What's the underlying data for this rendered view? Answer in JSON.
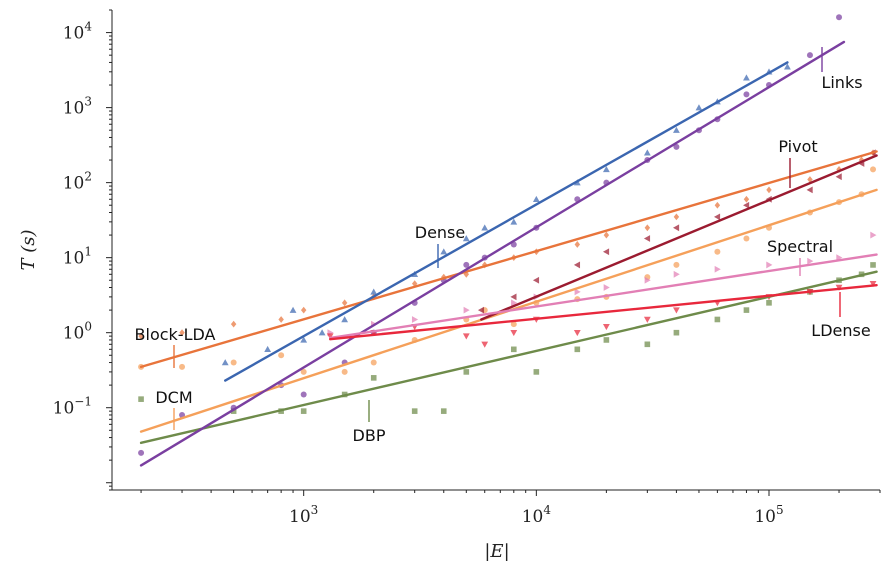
{
  "chart_data": {
    "type": "scatter",
    "title": "",
    "xlabel": "|E|",
    "ylabel": "T (s)",
    "xscale": "log",
    "yscale": "log",
    "xlim": [
      150,
      300000
    ],
    "ylim": [
      0.008,
      20000
    ],
    "x_ticks": [
      {
        "base": "10",
        "exp": "3",
        "value": 1000
      },
      {
        "base": "10",
        "exp": "4",
        "value": 10000
      },
      {
        "base": "10",
        "exp": "5",
        "value": 100000
      }
    ],
    "y_ticks": [
      {
        "base": "10",
        "exp": "−1",
        "value": 0.1
      },
      {
        "base": "10",
        "exp": "0",
        "value": 1
      },
      {
        "base": "10",
        "exp": "1",
        "value": 10
      },
      {
        "base": "10",
        "exp": "2",
        "value": 100
      },
      {
        "base": "10",
        "exp": "3",
        "value": 1000
      },
      {
        "base": "10",
        "exp": "4",
        "value": 10000
      }
    ],
    "grid": false,
    "series": [
      {
        "name": "Block-LDA",
        "color": "#e8743b",
        "marker": "diamond",
        "fit": [
          [
            200,
            0.35
          ],
          [
            290000,
            260
          ]
        ],
        "points": [
          [
            200,
            0.9
          ],
          [
            300,
            1.0
          ],
          [
            500,
            1.3
          ],
          [
            800,
            1.5
          ],
          [
            1000,
            2.0
          ],
          [
            1500,
            2.5
          ],
          [
            2000,
            3.0
          ],
          [
            3000,
            4.5
          ],
          [
            4000,
            5.5
          ],
          [
            5000,
            6.0
          ],
          [
            6000,
            8.0
          ],
          [
            8000,
            10
          ],
          [
            10000,
            12
          ],
          [
            15000,
            15
          ],
          [
            20000,
            20
          ],
          [
            30000,
            25
          ],
          [
            40000,
            35
          ],
          [
            60000,
            50
          ],
          [
            80000,
            60
          ],
          [
            100000,
            80
          ],
          [
            150000,
            110
          ],
          [
            200000,
            150
          ],
          [
            250000,
            200
          ],
          [
            280000,
            250
          ]
        ]
      },
      {
        "name": "DCM",
        "color": "#f5a05a",
        "marker": "circle",
        "fit": [
          [
            200,
            0.048
          ],
          [
            290000,
            80
          ]
        ],
        "points": [
          [
            200,
            0.35
          ],
          [
            300,
            0.35
          ],
          [
            500,
            0.4
          ],
          [
            800,
            0.5
          ],
          [
            1000,
            0.3
          ],
          [
            1500,
            0.3
          ],
          [
            2000,
            0.4
          ],
          [
            3000,
            0.8
          ],
          [
            5000,
            1.5
          ],
          [
            6000,
            2.0
          ],
          [
            8000,
            1.3
          ],
          [
            10000,
            2.5
          ],
          [
            15000,
            2.8
          ],
          [
            20000,
            3.0
          ],
          [
            30000,
            5.5
          ],
          [
            40000,
            8
          ],
          [
            60000,
            12
          ],
          [
            80000,
            18
          ],
          [
            100000,
            25
          ],
          [
            150000,
            40
          ],
          [
            200000,
            55
          ],
          [
            250000,
            70
          ],
          [
            280000,
            150
          ]
        ]
      },
      {
        "name": "DBP",
        "color": "#6e8b4a",
        "marker": "square",
        "fit": [
          [
            200,
            0.034
          ],
          [
            290000,
            6.5
          ]
        ],
        "points": [
          [
            200,
            0.13
          ],
          [
            500,
            0.09
          ],
          [
            800,
            0.09
          ],
          [
            1000,
            0.09
          ],
          [
            1500,
            0.15
          ],
          [
            2000,
            0.25
          ],
          [
            3000,
            0.09
          ],
          [
            4000,
            0.09
          ],
          [
            5000,
            0.3
          ],
          [
            8000,
            0.6
          ],
          [
            10000,
            0.3
          ],
          [
            15000,
            0.6
          ],
          [
            20000,
            0.8
          ],
          [
            30000,
            0.7
          ],
          [
            40000,
            1.0
          ],
          [
            60000,
            1.5
          ],
          [
            80000,
            2.0
          ],
          [
            100000,
            2.5
          ],
          [
            150000,
            3.5
          ],
          [
            200000,
            5
          ],
          [
            250000,
            6
          ],
          [
            280000,
            8
          ]
        ]
      },
      {
        "name": "Dense",
        "color": "#3b66b0",
        "marker": "triangle-up",
        "fit": [
          [
            460,
            0.23
          ],
          [
            120000,
            4000
          ]
        ],
        "points": [
          [
            460,
            0.4
          ],
          [
            700,
            0.6
          ],
          [
            900,
            2.0
          ],
          [
            1000,
            0.8
          ],
          [
            1200,
            1.0
          ],
          [
            1500,
            1.5
          ],
          [
            2000,
            3.5
          ],
          [
            3000,
            6
          ],
          [
            4000,
            12
          ],
          [
            5000,
            18
          ],
          [
            6000,
            25
          ],
          [
            8000,
            30
          ],
          [
            10000,
            60
          ],
          [
            15000,
            100
          ],
          [
            20000,
            150
          ],
          [
            30000,
            250
          ],
          [
            40000,
            500
          ],
          [
            50000,
            1000
          ],
          [
            60000,
            1200
          ],
          [
            80000,
            2500
          ],
          [
            100000,
            3000
          ],
          [
            120000,
            3500
          ]
        ]
      },
      {
        "name": "Links",
        "color": "#7a3fa0",
        "marker": "circle",
        "fit": [
          [
            200,
            0.017
          ],
          [
            210000,
            7500
          ]
        ],
        "points": [
          [
            200,
            0.025
          ],
          [
            300,
            0.08
          ],
          [
            500,
            0.1
          ],
          [
            800,
            0.2
          ],
          [
            1000,
            0.15
          ],
          [
            1500,
            0.4
          ],
          [
            2000,
            1.0
          ],
          [
            3000,
            2.5
          ],
          [
            4000,
            5
          ],
          [
            5000,
            8
          ],
          [
            6000,
            10
          ],
          [
            8000,
            15
          ],
          [
            10000,
            25
          ],
          [
            15000,
            60
          ],
          [
            20000,
            100
          ],
          [
            30000,
            200
          ],
          [
            40000,
            300
          ],
          [
            50000,
            500
          ],
          [
            60000,
            700
          ],
          [
            80000,
            1500
          ],
          [
            100000,
            2000
          ],
          [
            150000,
            5000
          ],
          [
            200000,
            16000
          ]
        ]
      },
      {
        "name": "Pivot",
        "color": "#9b1b30",
        "marker": "triangle-left",
        "fit": [
          [
            5800,
            1.5
          ],
          [
            290000,
            230
          ]
        ],
        "points": [
          [
            5800,
            2.0
          ],
          [
            8000,
            3.0
          ],
          [
            10000,
            5.0
          ],
          [
            15000,
            8.0
          ],
          [
            20000,
            12
          ],
          [
            30000,
            18
          ],
          [
            40000,
            25
          ],
          [
            60000,
            35
          ],
          [
            80000,
            50
          ],
          [
            100000,
            60
          ],
          [
            150000,
            80
          ],
          [
            200000,
            120
          ],
          [
            250000,
            180
          ],
          [
            280000,
            250
          ]
        ]
      },
      {
        "name": "Spectral",
        "color": "#e27fb5",
        "marker": "triangle-right",
        "fit": [
          [
            1300,
            0.85
          ],
          [
            290000,
            11
          ]
        ],
        "points": [
          [
            1300,
            1.0
          ],
          [
            2000,
            1.3
          ],
          [
            3000,
            1.5
          ],
          [
            5000,
            2.0
          ],
          [
            8000,
            2.5
          ],
          [
            10000,
            3.0
          ],
          [
            15000,
            3.5
          ],
          [
            20000,
            4.0
          ],
          [
            30000,
            5.0
          ],
          [
            40000,
            6.0
          ],
          [
            60000,
            7.0
          ],
          [
            100000,
            8.0
          ],
          [
            150000,
            9.0
          ],
          [
            200000,
            10
          ],
          [
            280000,
            20
          ]
        ]
      },
      {
        "name": "LDense",
        "color": "#e8283c",
        "marker": "triangle-down",
        "fit": [
          [
            1300,
            0.82
          ],
          [
            290000,
            4.3
          ]
        ],
        "points": [
          [
            1300,
            0.9
          ],
          [
            2000,
            1.0
          ],
          [
            3000,
            1.2
          ],
          [
            5000,
            0.9
          ],
          [
            6000,
            0.7
          ],
          [
            8000,
            1.0
          ],
          [
            10000,
            1.5
          ],
          [
            15000,
            1.0
          ],
          [
            20000,
            1.2
          ],
          [
            30000,
            1.5
          ],
          [
            40000,
            2.0
          ],
          [
            60000,
            2.5
          ],
          [
            100000,
            3.0
          ],
          [
            150000,
            3.5
          ],
          [
            200000,
            4.0
          ],
          [
            280000,
            4.5
          ]
        ]
      }
    ],
    "annotations": [
      {
        "text": "Links",
        "series": "Links"
      },
      {
        "text": "Pivot",
        "series": "Pivot"
      },
      {
        "text": "Dense",
        "series": "Dense"
      },
      {
        "text": "Spectral",
        "series": "Spectral"
      },
      {
        "text": "Block-LDA",
        "series": "Block-LDA"
      },
      {
        "text": "LDense",
        "series": "LDense"
      },
      {
        "text": "DCM",
        "series": "DCM"
      },
      {
        "text": "DBP",
        "series": "DBP"
      }
    ]
  }
}
